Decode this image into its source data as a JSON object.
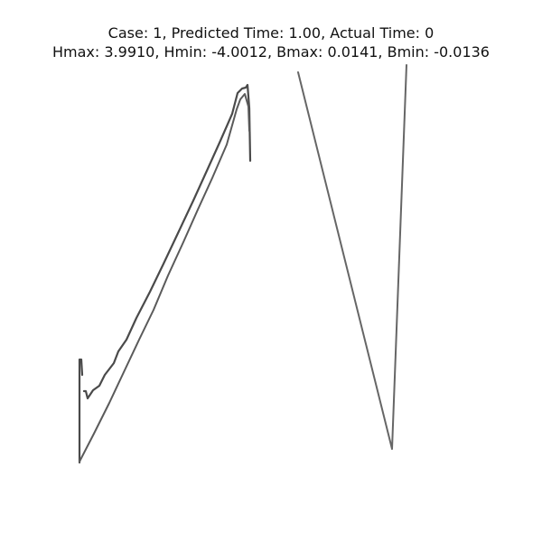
{
  "title": {
    "line1": "Case: 1, Predicted Time: 1.00, Actual Time: 0",
    "line2": "Hmax: 3.9910, Hmin: -4.0012, Bmax: 0.0141, Bmin: -0.0136"
  },
  "colors": {
    "background": "#ffffff",
    "stroke": "#555555",
    "title_text": "#111111"
  }
}
